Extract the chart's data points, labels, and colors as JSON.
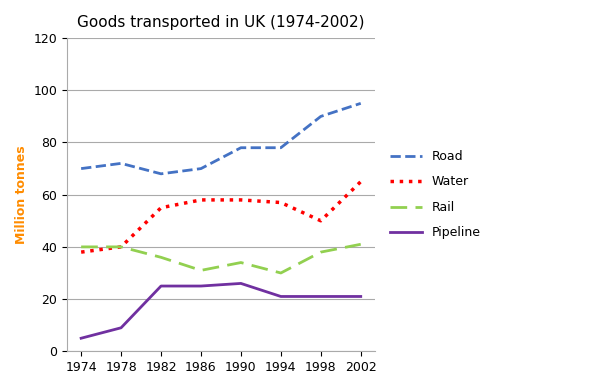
{
  "title": "Goods transported in UK (1974-2002)",
  "ylabel": "Million tonnes",
  "years": [
    1974,
    1978,
    1982,
    1986,
    1990,
    1994,
    1998,
    2002
  ],
  "road": [
    70,
    72,
    68,
    70,
    78,
    78,
    90,
    95
  ],
  "water": [
    38,
    40,
    55,
    58,
    58,
    57,
    50,
    65
  ],
  "rail": [
    40,
    40,
    36,
    31,
    34,
    30,
    38,
    41
  ],
  "pipeline": [
    5,
    9,
    25,
    25,
    26,
    21,
    21,
    21
  ],
  "road_color": "#4472C4",
  "water_color": "#FF0000",
  "rail_color": "#92D050",
  "pipeline_color": "#7030A0",
  "ylim": [
    0,
    120
  ],
  "yticks": [
    0,
    20,
    40,
    60,
    80,
    100,
    120
  ],
  "title_fontsize": 11,
  "axis_label_fontsize": 9,
  "legend_labels": [
    "Road",
    "Water",
    "Rail",
    "Pipeline"
  ],
  "ylabel_color": "#FF8C00"
}
